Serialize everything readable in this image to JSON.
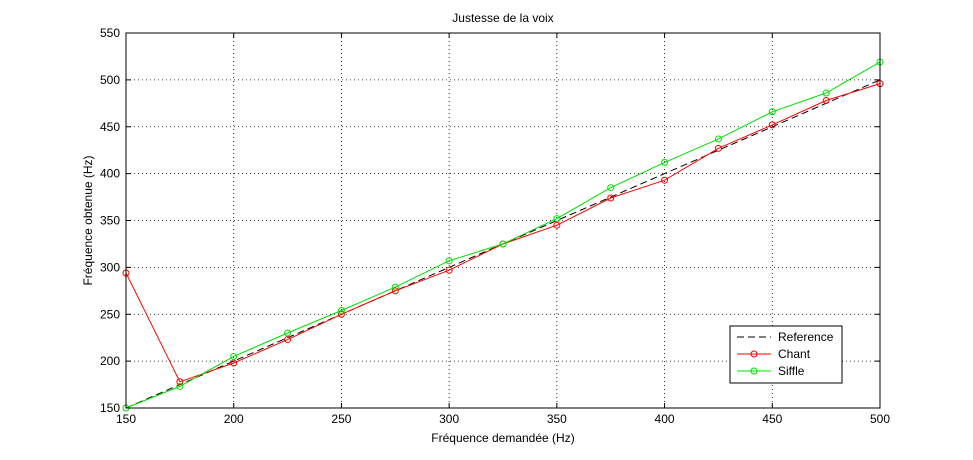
{
  "chart_data": {
    "type": "line",
    "title": "Justesse de la voix",
    "xlabel": "Fréquence demandée (Hz)",
    "ylabel": "Fréquence obtenue (Hz)",
    "xlim": [
      150,
      500
    ],
    "ylim": [
      150,
      550
    ],
    "xticks": [
      150,
      200,
      250,
      300,
      350,
      400,
      450,
      500
    ],
    "yticks": [
      150,
      200,
      250,
      300,
      350,
      400,
      450,
      500,
      550
    ],
    "grid": true,
    "legend_position": "bottom-right",
    "x": [
      150,
      175,
      200,
      225,
      250,
      275,
      300,
      325,
      350,
      375,
      400,
      425,
      450,
      475,
      500
    ],
    "series": [
      {
        "name": "Reference",
        "color": "#000000",
        "style": "dashed",
        "marker": "none",
        "values": [
          150,
          175,
          200,
          225,
          250,
          275,
          300,
          325,
          350,
          375,
          400,
          425,
          450,
          475,
          500
        ]
      },
      {
        "name": "Chant",
        "color": "#ff0000",
        "style": "solid",
        "marker": "circle",
        "values": [
          294,
          178,
          198,
          223,
          250,
          275,
          297,
          325,
          345,
          374,
          393,
          427,
          452,
          478,
          496
        ]
      },
      {
        "name": "Siffle",
        "color": "#00dd00",
        "style": "solid",
        "marker": "circle",
        "values": [
          150,
          173,
          205,
          230,
          254,
          279,
          307,
          325,
          352,
          385,
          412,
          437,
          466,
          486,
          519
        ]
      }
    ]
  }
}
